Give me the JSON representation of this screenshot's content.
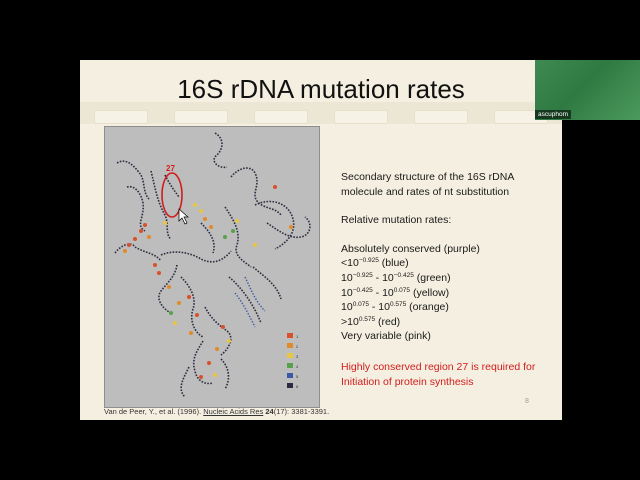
{
  "slide": {
    "title": "16S rDNA mutation rates",
    "figure_region_label": "27",
    "citation": {
      "authors": "Van de Peer, Y., et al. (1996).",
      "journal": "Nucleic Acids Res",
      "volume": "24",
      "issue_pages": "(17): 3381-3391."
    },
    "description_line1": "Secondary structure of the 16S rDNA",
    "description_line2": "molecule and rates of nt substitution",
    "rates_heading": "Relative mutation rates:",
    "rates": {
      "conserved": "Absolutely conserved (purple)",
      "blue_pre": "<10",
      "blue_exp": "−0.925",
      "blue_post": " (blue)",
      "green_a": "10",
      "green_a_exp": "−0.925",
      "green_mid": " - 10",
      "green_b_exp": "−0.425",
      "green_post": " (green)",
      "yellow_a": "10",
      "yellow_a_exp": "−0.425",
      "yellow_mid": " - 10",
      "yellow_b_exp": "0.075",
      "yellow_post": " (yellow)",
      "orange_a": "10",
      "orange_a_exp": "0.075",
      "orange_mid": " - 10",
      "orange_b_exp": "0.575",
      "orange_post": " (orange)",
      "red_pre": ">10",
      "red_exp": "0.575",
      "red_post": " (red)",
      "variable": "Very variable (pink)"
    },
    "highlight_line1": "Highly conserved region 27 is required for",
    "highlight_line2": "Initiation of protein synthesis",
    "page_number": "8",
    "legend_colors": [
      "#d8502c",
      "#e08a2a",
      "#e8c640",
      "#58a04a",
      "#3a58a8",
      "#2a2a40"
    ],
    "legend_keys": [
      "1",
      "2",
      "3",
      "4",
      "5",
      "6"
    ]
  },
  "video": {
    "participant_name": "ascuphom"
  },
  "colors": {
    "highlight_red": "#d21d1d",
    "slide_bg": "#f4efe0"
  }
}
